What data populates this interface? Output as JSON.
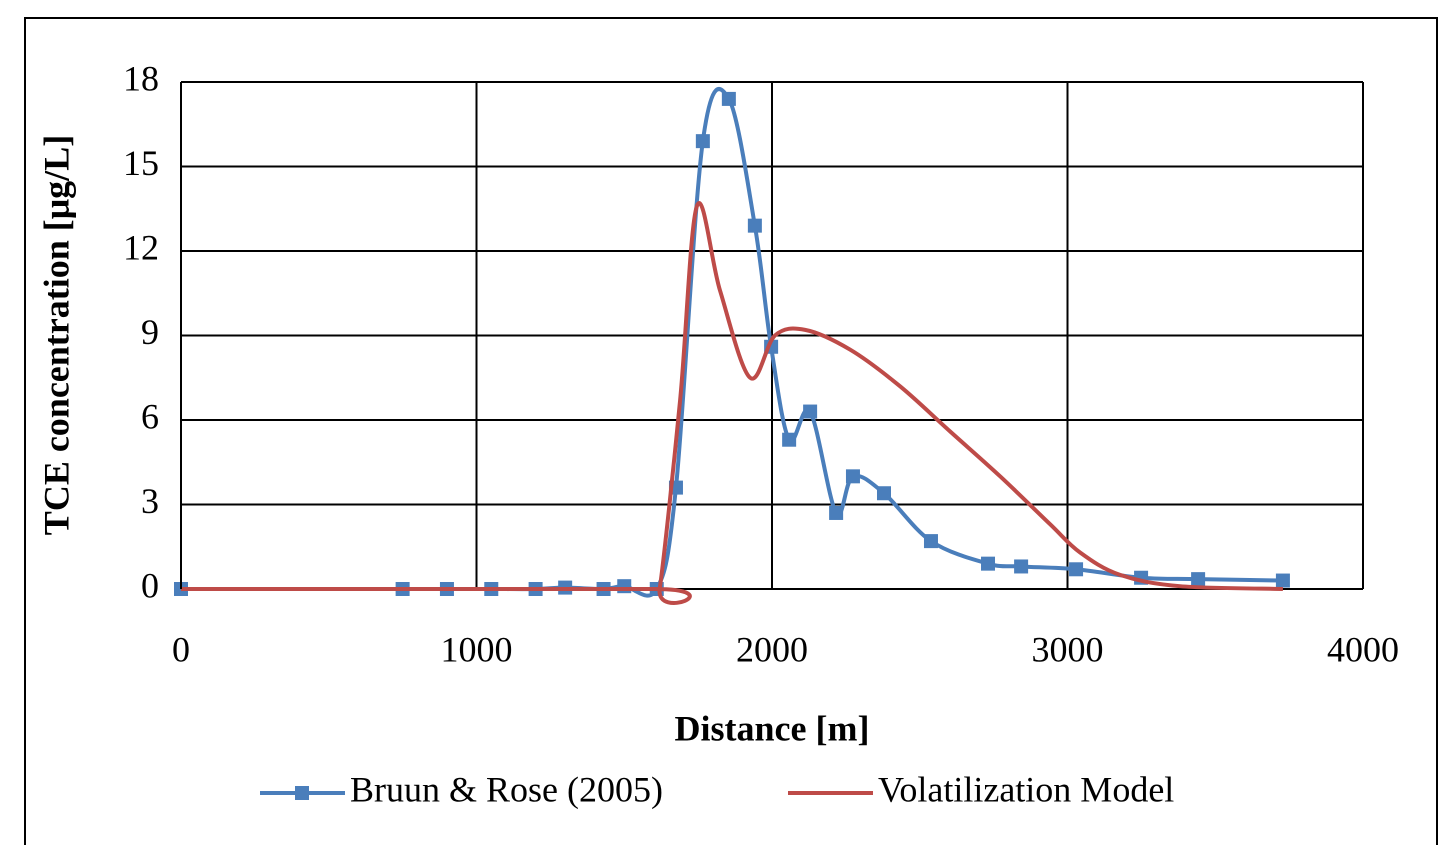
{
  "chart_data": {
    "type": "line",
    "x_label": "Distance [m]",
    "y_label": "TCE concentration [μg/L]",
    "xlim": [
      0,
      4000
    ],
    "xticks": [
      0,
      1000,
      2000,
      3000,
      4000
    ],
    "ylim": [
      0,
      18
    ],
    "yticks": [
      0,
      3,
      6,
      9,
      12,
      15,
      18
    ],
    "grid": true,
    "legend": "bottom",
    "series": [
      {
        "name": "Bruun & Rose (2005)",
        "color": "#4a7ebb",
        "marker": "square",
        "x": [
          0,
          750,
          900,
          1050,
          1200,
          1300,
          1430,
          1500,
          1610,
          1675,
          1766,
          1854,
          1942,
          1997,
          2058,
          2129,
          2217,
          2274,
          2379,
          2538,
          2731,
          2843,
          3029,
          3249,
          3442,
          3729
        ],
        "values": [
          0,
          0,
          0,
          0,
          0,
          0.05,
          0,
          0.1,
          0,
          3.6,
          15.9,
          17.4,
          12.9,
          8.6,
          5.3,
          6.3,
          2.7,
          4.0,
          3.4,
          1.7,
          0.9,
          0.8,
          0.7,
          0.4,
          0.35,
          0.3
        ]
      },
      {
        "name": "Volatilization Model",
        "color": "#be4b48",
        "marker": "none",
        "x": [
          0,
          1600,
          1620,
          1689,
          1746,
          1824,
          1926,
          2010,
          2112,
          2264,
          2433,
          2602,
          2772,
          2941,
          3042,
          3178,
          3381,
          3729
        ],
        "values": [
          0,
          0,
          0,
          6.7,
          13.6,
          10.6,
          7.5,
          9.0,
          9.2,
          8.5,
          7.2,
          5.6,
          4.0,
          2.3,
          1.3,
          0.5,
          0.1,
          0
        ]
      }
    ]
  }
}
